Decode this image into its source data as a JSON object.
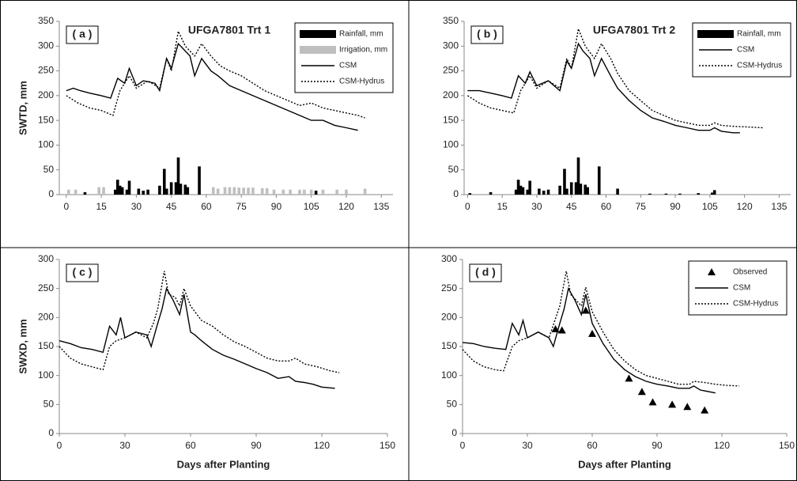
{
  "chart_data": [
    {
      "type": "combo",
      "panel_label": "( a )",
      "title": "UFGA7801 Trt 1",
      "y_label": "SWTD, mm",
      "xlim": [
        -3,
        140
      ],
      "xticks": [
        0,
        15,
        30,
        45,
        60,
        75,
        90,
        105,
        120,
        135
      ],
      "ylim": [
        0,
        350
      ],
      "yticks": [
        0,
        50,
        100,
        150,
        200,
        250,
        300,
        350
      ],
      "legend": "top-right",
      "series": [
        {
          "name": "Rainfall, mm",
          "kind": "bar",
          "color": "#000000",
          "x": [
            8,
            21,
            22,
            23,
            24,
            26,
            27,
            31,
            33,
            35,
            40,
            42,
            43,
            45,
            47,
            48,
            49,
            51,
            52,
            57,
            107
          ],
          "values": [
            5,
            10,
            30,
            18,
            15,
            10,
            28,
            12,
            8,
            10,
            18,
            52,
            12,
            25,
            25,
            75,
            22,
            20,
            15,
            57,
            8
          ]
        },
        {
          "name": "Irrigation, mm",
          "kind": "bar",
          "color": "#bfbfbf",
          "x": [
            1,
            4,
            14,
            16,
            63,
            65,
            68,
            70,
            72,
            74,
            76,
            78,
            80,
            84,
            86,
            89,
            93,
            96,
            100,
            102,
            105,
            110,
            116,
            120,
            128
          ],
          "values": [
            10,
            10,
            15,
            15,
            15,
            12,
            15,
            15,
            15,
            14,
            14,
            14,
            14,
            13,
            13,
            10,
            10,
            10,
            10,
            10,
            10,
            10,
            10,
            10,
            12
          ]
        },
        {
          "name": "CSM",
          "kind": "line",
          "style": "solid",
          "color": "#000000",
          "x": [
            0,
            3,
            6,
            10,
            15,
            19,
            22,
            25,
            27,
            30,
            33,
            38,
            40,
            43,
            45,
            48,
            50,
            53,
            55,
            58,
            62,
            65,
            70,
            75,
            80,
            85,
            90,
            95,
            100,
            105,
            110,
            115,
            120,
            125
          ],
          "values": [
            210,
            215,
            210,
            205,
            200,
            195,
            235,
            225,
            255,
            220,
            230,
            225,
            210,
            275,
            255,
            305,
            295,
            280,
            240,
            275,
            250,
            240,
            220,
            210,
            200,
            190,
            180,
            170,
            160,
            150,
            150,
            140,
            135,
            130
          ]
        },
        {
          "name": "CSM-Hydrus",
          "kind": "line",
          "style": "dotted",
          "color": "#000000",
          "x": [
            0,
            5,
            10,
            15,
            20,
            23,
            27,
            30,
            35,
            40,
            43,
            45,
            48,
            51,
            55,
            58,
            62,
            66,
            70,
            75,
            80,
            85,
            90,
            95,
            100,
            105,
            110,
            115,
            120,
            125,
            128
          ],
          "values": [
            200,
            185,
            175,
            170,
            160,
            210,
            240,
            215,
            230,
            215,
            275,
            250,
            330,
            300,
            280,
            305,
            280,
            260,
            250,
            240,
            225,
            210,
            200,
            190,
            180,
            185,
            175,
            170,
            165,
            160,
            155
          ]
        }
      ]
    },
    {
      "type": "combo",
      "panel_label": "( b )",
      "title": "UFGA7801 Trt 2",
      "xlim": [
        -1.5,
        140
      ],
      "xticks": [
        0,
        15,
        30,
        45,
        60,
        75,
        90,
        105,
        120,
        135
      ],
      "ylim": [
        0,
        350
      ],
      "yticks": [
        0,
        50,
        100,
        150,
        200,
        250,
        300,
        350
      ],
      "legend": "top-right",
      "series": [
        {
          "name": "Rainfall, mm",
          "kind": "bar",
          "color": "#000000",
          "x": [
            1,
            10,
            21,
            22,
            23,
            24,
            26,
            27,
            31,
            33,
            35,
            40,
            42,
            43,
            45,
            47,
            48,
            49,
            51,
            52,
            57,
            65,
            79,
            86,
            92,
            100,
            106,
            107
          ],
          "values": [
            3,
            5,
            10,
            30,
            18,
            15,
            10,
            28,
            12,
            8,
            10,
            18,
            52,
            12,
            25,
            25,
            75,
            22,
            20,
            15,
            57,
            12,
            2,
            2,
            2,
            3,
            4,
            9
          ]
        },
        {
          "name": "CSM",
          "kind": "line",
          "style": "solid",
          "color": "#000000",
          "x": [
            0,
            5,
            10,
            15,
            19,
            22,
            25,
            27,
            30,
            35,
            40,
            43,
            45,
            48,
            50,
            53,
            55,
            58,
            62,
            65,
            70,
            75,
            80,
            85,
            90,
            95,
            100,
            105,
            107,
            110,
            115,
            118
          ],
          "values": [
            210,
            210,
            205,
            200,
            195,
            240,
            225,
            248,
            220,
            230,
            210,
            270,
            255,
            305,
            290,
            275,
            240,
            275,
            240,
            215,
            190,
            170,
            155,
            148,
            140,
            135,
            130,
            130,
            135,
            128,
            125,
            125
          ]
        },
        {
          "name": "CSM-Hydrus",
          "kind": "line",
          "style": "dotted",
          "color": "#000000",
          "x": [
            0,
            5,
            10,
            15,
            20,
            23,
            27,
            30,
            35,
            40,
            43,
            45,
            48,
            51,
            55,
            58,
            62,
            65,
            70,
            75,
            80,
            85,
            90,
            95,
            100,
            105,
            107,
            110,
            115,
            120,
            128
          ],
          "values": [
            200,
            185,
            175,
            170,
            165,
            210,
            240,
            215,
            230,
            215,
            275,
            255,
            335,
            300,
            275,
            305,
            275,
            245,
            210,
            190,
            170,
            160,
            150,
            145,
            140,
            140,
            145,
            140,
            138,
            137,
            135
          ]
        }
      ]
    },
    {
      "type": "combo",
      "panel_label": "( c )",
      "y_label": "SWXD, mm",
      "x_label": "Days after Planting",
      "xlim": [
        0,
        150
      ],
      "xticks": [
        0,
        30,
        60,
        90,
        120,
        150
      ],
      "ylim": [
        0,
        300
      ],
      "yticks": [
        0,
        50,
        100,
        150,
        200,
        250,
        300
      ],
      "series": [
        {
          "name": "CSM",
          "kind": "line",
          "style": "solid",
          "color": "#000000",
          "x": [
            0,
            5,
            10,
            15,
            20,
            23,
            26,
            28,
            30,
            35,
            40,
            42,
            45,
            47,
            49,
            52,
            55,
            57,
            60,
            62,
            65,
            70,
            75,
            80,
            85,
            90,
            95,
            100,
            105,
            108,
            112,
            116,
            120,
            126
          ],
          "values": [
            160,
            155,
            148,
            145,
            140,
            185,
            170,
            200,
            165,
            175,
            170,
            150,
            190,
            215,
            250,
            230,
            205,
            240,
            175,
            170,
            160,
            145,
            135,
            128,
            120,
            112,
            105,
            95,
            98,
            90,
            88,
            85,
            80,
            78
          ]
        },
        {
          "name": "CSM-Hydrus",
          "kind": "line",
          "style": "dotted",
          "color": "#000000",
          "x": [
            0,
            5,
            10,
            15,
            20,
            23,
            26,
            30,
            35,
            40,
            43,
            45,
            48,
            50,
            53,
            55,
            57,
            60,
            65,
            70,
            75,
            80,
            85,
            90,
            95,
            100,
            105,
            108,
            112,
            118,
            124,
            128
          ],
          "values": [
            150,
            130,
            120,
            115,
            110,
            150,
            160,
            165,
            175,
            165,
            190,
            215,
            280,
            240,
            235,
            220,
            250,
            220,
            195,
            185,
            170,
            158,
            150,
            140,
            130,
            125,
            125,
            130,
            120,
            115,
            108,
            105
          ]
        }
      ]
    },
    {
      "type": "combo",
      "panel_label": "( d )",
      "x_label": "Days after Planting",
      "xlim": [
        0,
        150
      ],
      "xticks": [
        0,
        30,
        60,
        90,
        120,
        150
      ],
      "ylim": [
        0,
        300
      ],
      "yticks": [
        0,
        50,
        100,
        150,
        200,
        250,
        300
      ],
      "legend": "top-right",
      "series": [
        {
          "name": "Observed",
          "kind": "scatter",
          "color": "#000000",
          "x": [
            43,
            46,
            57,
            60,
            77,
            83,
            88,
            97,
            104,
            112
          ],
          "values": [
            180,
            178,
            212,
            172,
            95,
            72,
            54,
            50,
            46,
            40
          ]
        },
        {
          "name": "CSM",
          "kind": "line",
          "style": "solid",
          "color": "#000000",
          "x": [
            0,
            5,
            10,
            15,
            20,
            23,
            26,
            28,
            30,
            35,
            40,
            42,
            45,
            47,
            49,
            52,
            55,
            57,
            60,
            65,
            70,
            75,
            80,
            85,
            90,
            95,
            100,
            105,
            107,
            110,
            117
          ],
          "values": [
            157,
            155,
            150,
            147,
            145,
            190,
            170,
            195,
            165,
            175,
            165,
            150,
            190,
            215,
            250,
            230,
            205,
            240,
            190,
            155,
            128,
            110,
            98,
            90,
            85,
            82,
            78,
            78,
            82,
            75,
            70
          ]
        },
        {
          "name": "CSM-Hydrus",
          "kind": "line",
          "style": "dotted",
          "color": "#000000",
          "x": [
            0,
            5,
            10,
            15,
            19,
            23,
            26,
            30,
            35,
            40,
            45,
            48,
            50,
            55,
            57,
            60,
            65,
            70,
            75,
            80,
            85,
            90,
            95,
            100,
            105,
            107,
            112,
            117,
            122,
            128
          ],
          "values": [
            145,
            125,
            115,
            110,
            108,
            150,
            160,
            165,
            175,
            165,
            220,
            280,
            240,
            220,
            252,
            210,
            175,
            145,
            125,
            110,
            100,
            95,
            90,
            85,
            85,
            90,
            88,
            85,
            83,
            82
          ]
        }
      ]
    }
  ]
}
